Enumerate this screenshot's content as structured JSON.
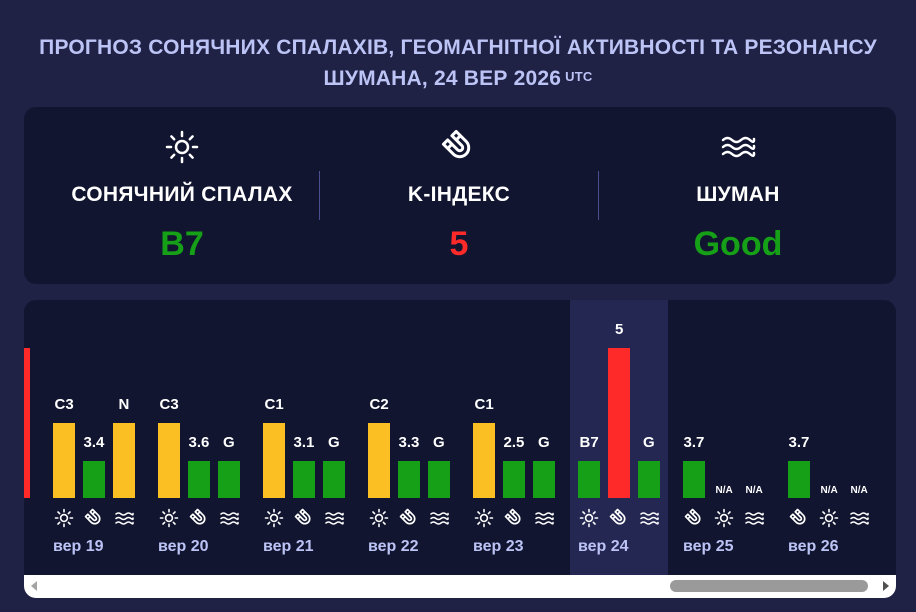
{
  "header": {
    "title": "ПРОГНОЗ СОНЯЧНИХ СПАЛАХІВ, ГЕОМАГНІТНОЇ АКТИВНОСТІ ТА РЕЗОНАНСУ ШУМАНА, 24 ВЕР 2026",
    "timezone": "UTC"
  },
  "summary": {
    "solar": {
      "icon": "sun-icon",
      "label": "СОНЯЧНИЙ СПАЛАХ",
      "value": "B7",
      "color": "#16a017"
    },
    "kindex": {
      "icon": "magnet-icon",
      "label": "K-ІНДЕКС",
      "value": "5",
      "color": "#fe2a2a"
    },
    "schumann": {
      "icon": "waves-icon",
      "label": "ШУМАН",
      "value": "Good",
      "color": "#16a017"
    }
  },
  "colors": {
    "background": "#1f2145",
    "panel": "#111530",
    "highlight": "#232752",
    "flare_bar": "#fbbf24",
    "good": "#16a017",
    "alert": "#fe2a2a",
    "day_label": "#bcc3f5"
  },
  "days": [
    {
      "date": "вер 19",
      "flare": "C3",
      "kindex": 3.4,
      "kindex_label": "3.4",
      "schumann": "N"
    },
    {
      "date": "вер 20",
      "flare": "C3",
      "kindex": 3.6,
      "kindex_label": "3.6",
      "schumann": "G"
    },
    {
      "date": "вер 21",
      "flare": "C1",
      "kindex": 3.1,
      "kindex_label": "3.1",
      "schumann": "G"
    },
    {
      "date": "вер 22",
      "flare": "C2",
      "kindex": 3.3,
      "kindex_label": "3.3",
      "schumann": "G"
    },
    {
      "date": "вер 23",
      "flare": "C1",
      "kindex": 2.5,
      "kindex_label": "2.5",
      "schumann": "G"
    },
    {
      "date": "вер 24",
      "flare": "B7",
      "kindex": 5,
      "kindex_label": "5",
      "schumann": "G",
      "current": true
    },
    {
      "date": "вер 25",
      "flare": "N/A",
      "kindex": 3.7,
      "kindex_label": "3.7",
      "schumann": "N/A"
    },
    {
      "date": "вер 26",
      "flare": "N/A",
      "kindex": 3.7,
      "kindex_label": "3.7",
      "schumann": "N/A"
    }
  ]
}
